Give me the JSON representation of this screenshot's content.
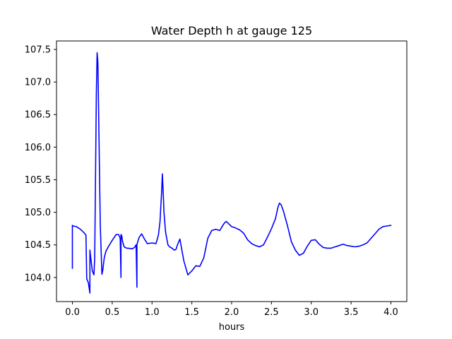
{
  "chart_data": {
    "type": "line",
    "title": "Water Depth h at gauge 125",
    "xlabel": "hours",
    "ylabel": "",
    "xlim": [
      -0.2,
      4.2
    ],
    "ylim": [
      103.63,
      107.63
    ],
    "xticks": [
      "0.0",
      "0.5",
      "1.0",
      "1.5",
      "2.0",
      "2.5",
      "3.0",
      "3.5",
      "4.0"
    ],
    "yticks": [
      "104.0",
      "104.5",
      "105.0",
      "105.5",
      "106.0",
      "106.5",
      "107.0",
      "107.5"
    ],
    "grid": false,
    "series": [
      {
        "color": "#0000ff",
        "x": [
          0.0,
          0.0,
          0.01,
          0.05,
          0.1,
          0.15,
          0.17,
          0.18,
          0.2,
          0.22,
          0.22,
          0.23,
          0.25,
          0.27,
          0.28,
          0.3,
          0.31,
          0.32,
          0.33,
          0.35,
          0.37,
          0.38,
          0.4,
          0.42,
          0.45,
          0.5,
          0.55,
          0.58,
          0.6,
          0.61,
          0.61,
          0.62,
          0.63,
          0.65,
          0.68,
          0.7,
          0.75,
          0.78,
          0.8,
          0.81,
          0.81,
          0.82,
          0.84,
          0.87,
          0.9,
          0.94,
          1.0,
          1.05,
          1.08,
          1.1,
          1.12,
          1.13,
          1.14,
          1.15,
          1.17,
          1.2,
          1.22,
          1.25,
          1.28,
          1.3,
          1.32,
          1.35,
          1.37,
          1.4,
          1.45,
          1.5,
          1.55,
          1.6,
          1.65,
          1.7,
          1.75,
          1.8,
          1.85,
          1.9,
          1.93,
          1.95,
          2.0,
          2.05,
          2.1,
          2.15,
          2.2,
          2.25,
          2.3,
          2.35,
          2.4,
          2.45,
          2.5,
          2.55,
          2.58,
          2.6,
          2.62,
          2.65,
          2.7,
          2.75,
          2.8,
          2.85,
          2.9,
          2.95,
          3.0,
          3.05,
          3.1,
          3.15,
          3.2,
          3.25,
          3.3,
          3.35,
          3.4,
          3.45,
          3.5,
          3.55,
          3.6,
          3.65,
          3.7,
          3.75,
          3.8,
          3.85,
          3.9,
          3.95,
          4.0
        ],
        "y": [
          104.14,
          104.8,
          104.79,
          104.78,
          104.74,
          104.68,
          104.65,
          103.98,
          103.92,
          103.76,
          104.42,
          104.3,
          104.1,
          104.04,
          104.3,
          106.8,
          107.45,
          107.3,
          106.5,
          104.8,
          104.05,
          104.1,
          104.3,
          104.4,
          104.47,
          104.57,
          104.66,
          104.66,
          104.6,
          104.0,
          104.66,
          104.64,
          104.55,
          104.47,
          104.45,
          104.45,
          104.44,
          104.46,
          104.5,
          103.85,
          104.5,
          104.55,
          104.62,
          104.67,
          104.6,
          104.52,
          104.53,
          104.52,
          104.65,
          104.85,
          105.3,
          105.59,
          105.3,
          105.0,
          104.7,
          104.5,
          104.47,
          104.45,
          104.42,
          104.43,
          104.5,
          104.59,
          104.45,
          104.25,
          104.04,
          104.1,
          104.18,
          104.17,
          104.3,
          104.6,
          104.72,
          104.74,
          104.72,
          104.82,
          104.86,
          104.84,
          104.78,
          104.76,
          104.73,
          104.68,
          104.58,
          104.52,
          104.49,
          104.47,
          104.5,
          104.62,
          104.75,
          104.9,
          105.07,
          105.14,
          105.12,
          105.02,
          104.8,
          104.55,
          104.42,
          104.34,
          104.37,
          104.48,
          104.57,
          104.58,
          104.51,
          104.46,
          104.45,
          104.45,
          104.47,
          104.49,
          104.51,
          104.49,
          104.48,
          104.47,
          104.48,
          104.5,
          104.53,
          104.6,
          104.67,
          104.74,
          104.78,
          104.79,
          104.8
        ]
      }
    ]
  }
}
